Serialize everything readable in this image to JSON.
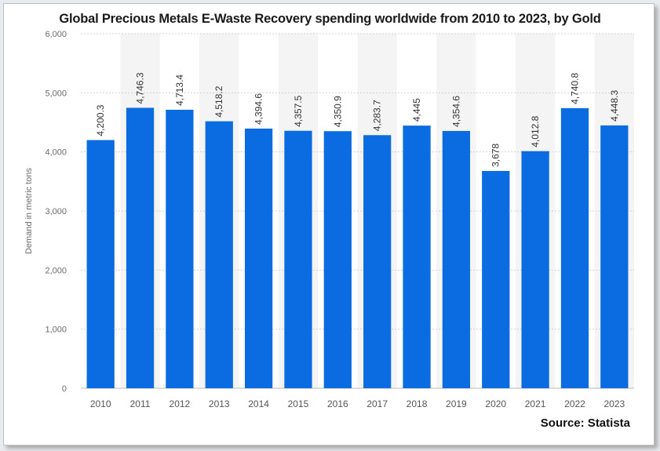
{
  "title": "Global Precious Metals E-Waste Recovery spending worldwide from 2010 to 2023, by Gold",
  "source": "Source: Statista",
  "colors": {
    "bar": "#0a6ce0",
    "band": "#f4f4f4",
    "grid": "#d0d0d0",
    "axis": "#bbbbbb"
  },
  "chart_data": {
    "type": "bar",
    "title": "Global Precious Metals E-Waste Recovery spending worldwide from 2010 to 2023, by Gold",
    "xlabel": "",
    "ylabel": "Demand in metric tons",
    "ylim": [
      0,
      6000
    ],
    "yticks": [
      0,
      1000,
      2000,
      3000,
      4000,
      5000,
      6000
    ],
    "ytick_labels": [
      "0",
      "1,000",
      "2,000",
      "3,000",
      "4,000",
      "5,000",
      "6,000"
    ],
    "categories": [
      "2010",
      "2011",
      "2012",
      "2013",
      "2014",
      "2015",
      "2016",
      "2017",
      "2018",
      "2019",
      "2020",
      "2021",
      "2022",
      "2023"
    ],
    "values": [
      4200.3,
      4746.3,
      4713.4,
      4518.2,
      4394.6,
      4357.5,
      4350.9,
      4283.7,
      4445,
      4354.6,
      3678,
      4012.8,
      4740.8,
      4448.3
    ],
    "value_labels": [
      "4,200.3",
      "4,746.3",
      "4,713.4",
      "4,518.2",
      "4,394.6",
      "4,357.5",
      "4,350.9",
      "4,283.7",
      "4,445",
      "4,354.6",
      "3,678",
      "4,012.8",
      "4,740.8",
      "4,448.3"
    ],
    "grid": true,
    "legend": "none"
  }
}
